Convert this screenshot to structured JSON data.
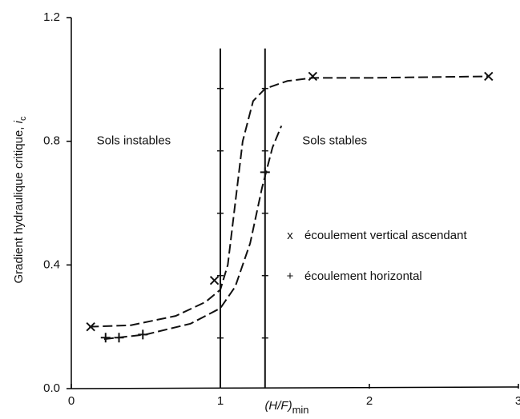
{
  "chart_data": {
    "type": "scatter",
    "x_label": "(H/F)",
    "x_label_sub": "min",
    "y_label": "Gradient hydraulique critique, ",
    "y_label_symbol": "i",
    "y_label_sub": "c",
    "xlim": [
      0,
      3
    ],
    "ylim": [
      0,
      1.2
    ],
    "xticks": [
      0,
      1,
      2,
      3
    ],
    "yticks": [
      {
        "value": 0,
        "label": "0.0"
      },
      0.4,
      0.8,
      1.2
    ],
    "annotations": [
      {
        "text": "Sols instables",
        "x": 0.17,
        "y": 0.8
      },
      {
        "text": "Sols stables",
        "x": 1.55,
        "y": 0.8
      }
    ],
    "vertical_lines": [
      1,
      1.3
    ],
    "vertical_line_top": 1.1,
    "series": [
      {
        "name": "écoulement vertical ascendant",
        "marker": "x",
        "symbol": "x",
        "color": "#111111",
        "x": [
          0.13,
          0.96,
          1.62,
          2.8
        ],
        "values": [
          0.2,
          0.35,
          1.01,
          1.01
        ]
      },
      {
        "name": "écoulement horizontal",
        "marker": "+",
        "symbol": "+",
        "color": "#111111",
        "x": [
          0.23,
          0.32,
          0.48,
          1.3
        ],
        "values": [
          0.165,
          0.165,
          0.175,
          0.7
        ]
      }
    ],
    "fit_curves": [
      {
        "x": [
          0.12,
          0.4,
          0.7,
          0.9,
          1.0,
          1.05,
          1.1,
          1.15,
          1.22,
          1.3,
          1.45,
          1.62,
          2.0,
          2.8
        ],
        "values": [
          0.2,
          0.205,
          0.235,
          0.28,
          0.32,
          0.4,
          0.6,
          0.8,
          0.93,
          0.97,
          0.995,
          1.005,
          1.005,
          1.01
        ]
      },
      {
        "x": [
          0.22,
          0.5,
          0.8,
          1.0,
          1.1,
          1.2,
          1.28,
          1.35,
          1.41
        ],
        "values": [
          0.16,
          0.175,
          0.21,
          0.26,
          0.33,
          0.47,
          0.65,
          0.78,
          0.85
        ]
      }
    ]
  }
}
